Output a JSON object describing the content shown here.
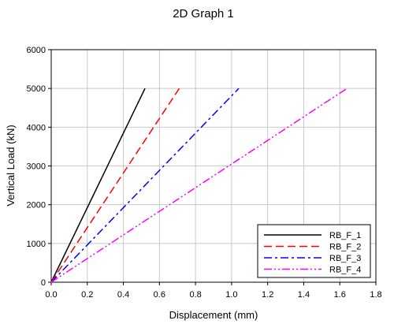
{
  "chart_data": {
    "type": "line",
    "title": "2D Graph 1",
    "xlabel": "Displacement (mm)",
    "ylabel": "Vertical Load (kN)",
    "xlim": [
      0.0,
      1.8
    ],
    "ylim": [
      0,
      6000
    ],
    "xticks": [
      "0.0",
      "0.2",
      "0.4",
      "0.6",
      "0.8",
      "1.0",
      "1.2",
      "1.4",
      "1.6",
      "1.8"
    ],
    "yticks": [
      "0",
      "1000",
      "2000",
      "3000",
      "4000",
      "5000",
      "6000"
    ],
    "grid": true,
    "legend_position": "bottom-right",
    "series": [
      {
        "name": "RB_F_1",
        "color": "#000000",
        "dash": "solid",
        "x": [
          0.0,
          0.52
        ],
        "y": [
          0,
          5000
        ]
      },
      {
        "name": "RB_F_2",
        "color": "#ff0000",
        "dash": "dash",
        "x": [
          0.0,
          0.71
        ],
        "y": [
          0,
          5000
        ]
      },
      {
        "name": "RB_F_3",
        "color": "#0000ff",
        "dash": "dash-dot",
        "x": [
          0.0,
          1.04
        ],
        "y": [
          0,
          5000
        ]
      },
      {
        "name": "RB_F_4",
        "color": "#ff00ff",
        "dash": "dash-dot-dot",
        "x": [
          0.0,
          1.64
        ],
        "y": [
          0,
          5000
        ]
      }
    ]
  }
}
